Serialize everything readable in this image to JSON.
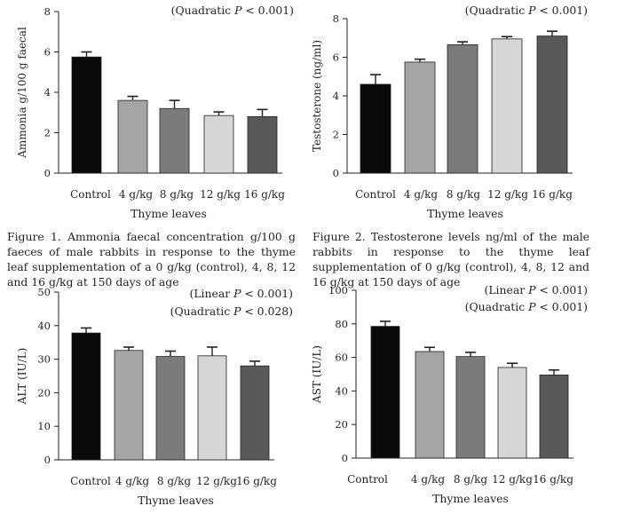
{
  "charts": [
    {
      "type": "bar",
      "title": "",
      "ylabel": "Ammonia g/100 g faecal",
      "xlabel": "Thyme leaves",
      "categories": [
        "Control",
        "4 g/kg",
        "8 g/kg",
        "12 g/kg",
        "16 g/kg"
      ],
      "values": [
        5.75,
        3.6,
        3.2,
        2.85,
        2.8
      ],
      "errors": [
        0.25,
        0.2,
        0.4,
        0.18,
        0.35
      ],
      "ylim": [
        0,
        8
      ],
      "yticks": [
        0,
        2,
        4,
        6,
        8
      ],
      "annotations": [
        "(Quadratic P < 0.001)"
      ],
      "bar_colors": [
        "#0a0a0a",
        "#a5a5a5",
        "#7b7b7b",
        "#d6d6d6",
        "#595959"
      ]
    },
    {
      "type": "bar",
      "title": "",
      "ylabel": "Testosterone (ng/ml)",
      "xlabel": "Thyme leaves",
      "categories": [
        "Control",
        "4 g/kg",
        "8 g/kg",
        "12 g/kg",
        "16 g/kg"
      ],
      "values": [
        4.6,
        5.75,
        6.65,
        6.95,
        7.1
      ],
      "errors": [
        0.5,
        0.15,
        0.15,
        0.12,
        0.25
      ],
      "ylim": [
        0,
        8
      ],
      "yticks": [
        0,
        2,
        4,
        6,
        8
      ],
      "annotations": [
        "(Quadratic P < 0.001)"
      ],
      "bar_colors": [
        "#0a0a0a",
        "#a5a5a5",
        "#7b7b7b",
        "#d6d6d6",
        "#595959"
      ]
    },
    {
      "type": "bar",
      "title": "",
      "ylabel": "ALT (IU/L)",
      "xlabel": "Thyme leaves",
      "categories": [
        "Control",
        "4 g/kg",
        "8 g/kg",
        "12 g/kg",
        "16 g/kg"
      ],
      "values": [
        37.8,
        32.6,
        30.8,
        31.0,
        28.0
      ],
      "errors": [
        1.5,
        1.0,
        1.6,
        2.6,
        1.4
      ],
      "ylim": [
        0,
        50
      ],
      "yticks": [
        0,
        10,
        20,
        30,
        40,
        50
      ],
      "annotations": [
        "(Linear P < 0.001)",
        "(Quadratic P < 0.028)"
      ],
      "bar_colors": [
        "#0a0a0a",
        "#a5a5a5",
        "#7b7b7b",
        "#d6d6d6",
        "#595959"
      ]
    },
    {
      "type": "bar",
      "title": "",
      "ylabel": "AST (IU/L)",
      "xlabel": "Thyme leaves",
      "categories": [
        "Control",
        "4 g/kg",
        "8 g/kg",
        "12 g/kg",
        "16 g/kg"
      ],
      "values": [
        78.5,
        63.5,
        60.5,
        54.0,
        49.5
      ],
      "errors": [
        3.0,
        2.5,
        2.5,
        2.5,
        3.0
      ],
      "ylim": [
        0,
        100
      ],
      "yticks": [
        0,
        20,
        40,
        60,
        80,
        100
      ],
      "annotations": [
        "(Linear P < 0.001)",
        "(Quadratic P < 0.001)"
      ],
      "bar_colors": [
        "#0a0a0a",
        "#a5a5a5",
        "#7b7b7b",
        "#d6d6d6",
        "#595959"
      ]
    }
  ],
  "captions": {
    "fig1": "Figure 1. Ammonia faecal concentration g/100 g faeces of male rabbits in response to the thyme leaf supplementation of a 0 g/kg (control), 4, 8, 12 and 16 g/kg at 150 days of age",
    "fig2": "Figure 2. Testosterone levels ng/ml of the male rabbits in response to the thyme leaf supplementation of 0 g/kg (control), 4, 8, 12 and 16 g/kg at 150 days of age"
  }
}
